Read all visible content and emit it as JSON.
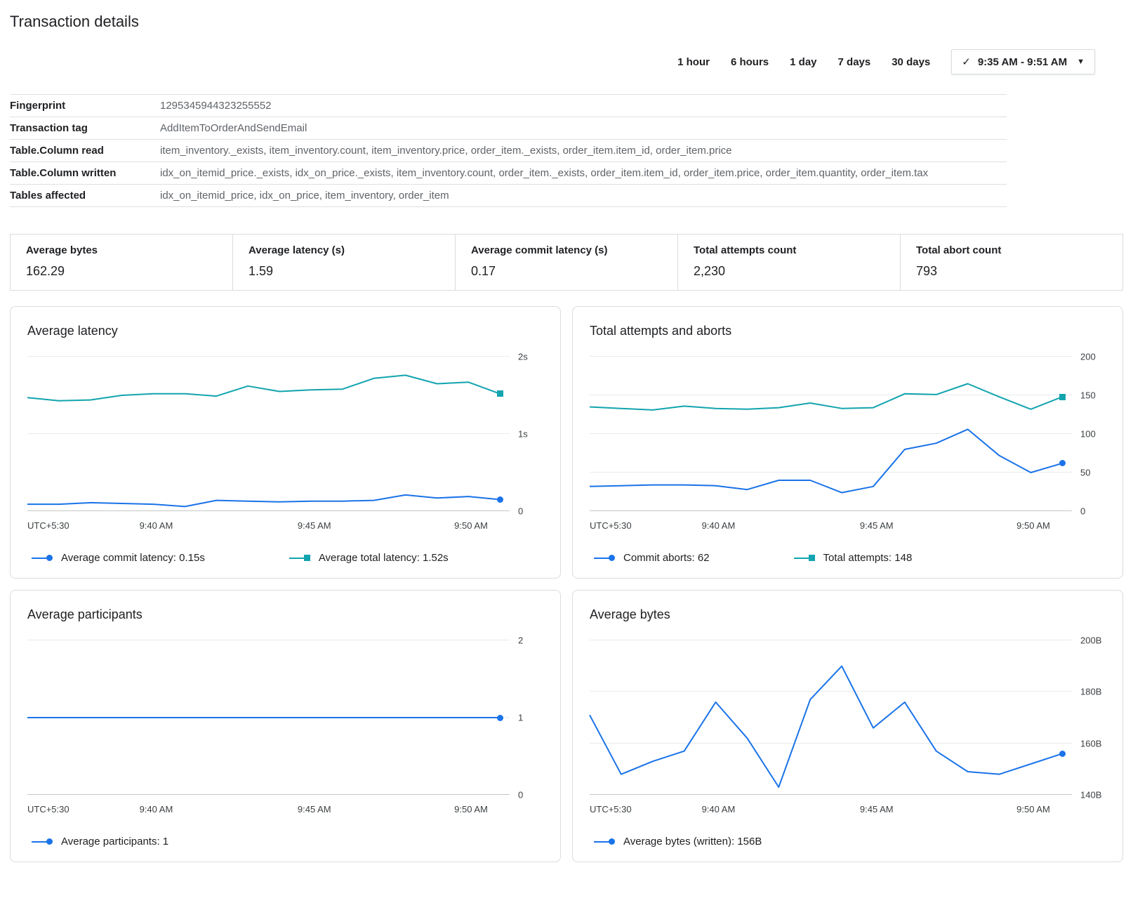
{
  "page": {
    "title": "Transaction details"
  },
  "time_range": {
    "options": [
      "1 hour",
      "6 hours",
      "1 day",
      "7 days",
      "30 days"
    ],
    "selected": "9:35 AM - 9:51 AM",
    "check_icon": "✓",
    "caret_icon": "▼"
  },
  "details": {
    "rows": [
      {
        "label": "Fingerprint",
        "value": "1295345944323255552"
      },
      {
        "label": "Transaction tag",
        "value": "AddItemToOrderAndSendEmail"
      },
      {
        "label": "Table.Column read",
        "value": "item_inventory._exists, item_inventory.count, item_inventory.price, order_item._exists, order_item.item_id, order_item.price"
      },
      {
        "label": "Table.Column written",
        "value": "idx_on_itemid_price._exists, idx_on_price._exists, item_inventory.count, order_item._exists, order_item.item_id, order_item.price, order_item.quantity, order_item.tax"
      },
      {
        "label": "Tables affected",
        "value": "idx_on_itemid_price, idx_on_price, item_inventory, order_item"
      }
    ]
  },
  "stats": [
    {
      "label": "Average bytes",
      "value": "162.29"
    },
    {
      "label": "Average latency (s)",
      "value": "1.59"
    },
    {
      "label": "Average commit latency (s)",
      "value": "0.17"
    },
    {
      "label": "Total attempts count",
      "value": "2,230"
    },
    {
      "label": "Total abort count",
      "value": "793"
    }
  ],
  "colors": {
    "blue": "#1a73e8",
    "teal": "#12a4af",
    "grid": "#e8eaed",
    "axis_text": "#3c4043"
  },
  "chart_data": [
    {
      "type": "line",
      "title": "Average latency",
      "y_range": [
        0,
        2
      ],
      "y_ticks": [
        {
          "value": 0,
          "label": "0"
        },
        {
          "value": 1,
          "label": "1s"
        },
        {
          "value": 2,
          "label": "2s"
        }
      ],
      "x_ticks": [
        {
          "label": "UTC+5:30",
          "pos": 0,
          "align": "left"
        },
        {
          "label": "9:40 AM",
          "pos": 0.267
        },
        {
          "label": "9:45 AM",
          "pos": 0.595
        },
        {
          "label": "9:50 AM",
          "pos": 0.92
        }
      ],
      "series": [
        {
          "name": "Average commit latency",
          "legend": "Average commit latency: 0.15s",
          "color": "#1a73e8",
          "marker": "circle",
          "values": [
            0.09,
            0.09,
            0.11,
            0.1,
            0.09,
            0.06,
            0.14,
            0.13,
            0.12,
            0.13,
            0.13,
            0.14,
            0.21,
            0.17,
            0.19,
            0.15
          ]
        },
        {
          "name": "Average total latency",
          "legend": "Average total latency: 1.52s",
          "color": "#12a4af",
          "marker": "square",
          "values": [
            1.47,
            1.43,
            1.44,
            1.5,
            1.52,
            1.52,
            1.49,
            1.62,
            1.55,
            1.57,
            1.58,
            1.72,
            1.76,
            1.65,
            1.67,
            1.52
          ]
        }
      ]
    },
    {
      "type": "line",
      "title": "Total attempts and aborts",
      "y_range": [
        0,
        200
      ],
      "y_ticks": [
        {
          "value": 0,
          "label": "0"
        },
        {
          "value": 50,
          "label": "50"
        },
        {
          "value": 100,
          "label": "100"
        },
        {
          "value": 150,
          "label": "150"
        },
        {
          "value": 200,
          "label": "200"
        }
      ],
      "x_ticks": [
        {
          "label": "UTC+5:30",
          "pos": 0,
          "align": "left"
        },
        {
          "label": "9:40 AM",
          "pos": 0.267
        },
        {
          "label": "9:45 AM",
          "pos": 0.595
        },
        {
          "label": "9:50 AM",
          "pos": 0.92
        }
      ],
      "series": [
        {
          "name": "Commit aborts",
          "legend": "Commit aborts: 62",
          "color": "#1a73e8",
          "marker": "circle",
          "values": [
            32,
            33,
            34,
            34,
            33,
            28,
            40,
            40,
            24,
            32,
            80,
            88,
            106,
            72,
            50,
            62
          ]
        },
        {
          "name": "Total attempts",
          "legend": "Total attempts: 148",
          "color": "#12a4af",
          "marker": "square",
          "values": [
            135,
            133,
            131,
            136,
            133,
            132,
            134,
            140,
            133,
            134,
            152,
            151,
            165,
            148,
            132,
            148
          ]
        }
      ]
    },
    {
      "type": "line",
      "title": "Average participants",
      "y_range": [
        0,
        2
      ],
      "y_ticks": [
        {
          "value": 0,
          "label": "0"
        },
        {
          "value": 1,
          "label": "1"
        },
        {
          "value": 2,
          "label": "2"
        }
      ],
      "x_ticks": [
        {
          "label": "UTC+5:30",
          "pos": 0,
          "align": "left"
        },
        {
          "label": "9:40 AM",
          "pos": 0.267
        },
        {
          "label": "9:45 AM",
          "pos": 0.595
        },
        {
          "label": "9:50 AM",
          "pos": 0.92
        }
      ],
      "series": [
        {
          "name": "Average participants",
          "legend": "Average participants: 1",
          "color": "#1a73e8",
          "marker": "circle",
          "values": [
            1,
            1,
            1,
            1,
            1,
            1,
            1,
            1,
            1,
            1,
            1,
            1,
            1,
            1,
            1,
            1
          ]
        }
      ]
    },
    {
      "type": "line",
      "title": "Average bytes",
      "y_range": [
        140,
        200
      ],
      "y_ticks": [
        {
          "value": 140,
          "label": "140B"
        },
        {
          "value": 160,
          "label": "160B"
        },
        {
          "value": 180,
          "label": "180B"
        },
        {
          "value": 200,
          "label": "200B"
        }
      ],
      "x_ticks": [
        {
          "label": "UTC+5:30",
          "pos": 0,
          "align": "left"
        },
        {
          "label": "9:40 AM",
          "pos": 0.267
        },
        {
          "label": "9:45 AM",
          "pos": 0.595
        },
        {
          "label": "9:50 AM",
          "pos": 0.92
        }
      ],
      "series": [
        {
          "name": "Average bytes (written)",
          "legend": "Average bytes (written): 156B",
          "color": "#1a73e8",
          "marker": "circle",
          "values": [
            171,
            148,
            153,
            157,
            176,
            162,
            143,
            177,
            190,
            166,
            176,
            157,
            149,
            148,
            152,
            156
          ]
        }
      ]
    }
  ]
}
